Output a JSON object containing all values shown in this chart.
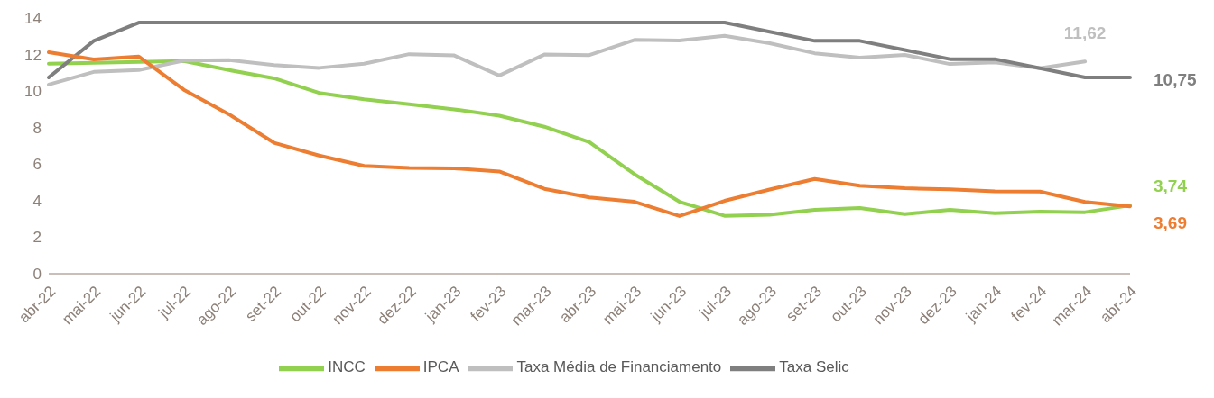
{
  "chart_data": {
    "type": "line",
    "categories": [
      "abr-22",
      "mai-22",
      "jun-22",
      "jul-22",
      "ago-22",
      "set-22",
      "out-22",
      "nov-22",
      "dez-22",
      "jan-23",
      "fev-23",
      "mar-23",
      "abr-23",
      "mai-23",
      "jun-23",
      "jul-23",
      "ago-23",
      "set-23",
      "out-23",
      "nov-23",
      "dez-23",
      "jan-24",
      "fev-24",
      "mar-24",
      "abr-24"
    ],
    "series": [
      {
        "name": "INCC",
        "color": "#92d050",
        "values": [
          11.5,
          11.55,
          11.6,
          11.65,
          11.15,
          10.7,
          9.9,
          9.55,
          9.28,
          9.0,
          8.65,
          8.05,
          7.2,
          5.45,
          3.94,
          3.17,
          3.23,
          3.5,
          3.6,
          3.27,
          3.5,
          3.32,
          3.4,
          3.37,
          3.74
        ],
        "value_labels": [
          null,
          null,
          null,
          null,
          null,
          null,
          null,
          null,
          null,
          null,
          null,
          null,
          null,
          null,
          null,
          null,
          null,
          null,
          null,
          null,
          null,
          null,
          null,
          null,
          "3,74"
        ]
      },
      {
        "name": "Taxa Média de Financiamento",
        "color": "#bfbfbf",
        "values": [
          10.36,
          11.05,
          11.15,
          11.67,
          11.7,
          11.42,
          11.27,
          11.5,
          12.02,
          11.95,
          10.85,
          12.0,
          11.97,
          12.8,
          12.77,
          13.03,
          12.62,
          12.07,
          11.83,
          11.98,
          11.48,
          11.57,
          11.25,
          11.62,
          null
        ],
        "value_labels": [
          null,
          null,
          null,
          null,
          null,
          null,
          null,
          null,
          null,
          null,
          null,
          null,
          null,
          null,
          null,
          null,
          null,
          null,
          null,
          null,
          null,
          null,
          null,
          "11,62",
          null
        ]
      },
      {
        "name": "Taxa Selic",
        "color": "#7f7f7f",
        "values": [
          10.75,
          12.75,
          13.75,
          13.75,
          13.75,
          13.75,
          13.75,
          13.75,
          13.75,
          13.75,
          13.75,
          13.75,
          13.75,
          13.75,
          13.75,
          13.75,
          13.25,
          12.75,
          12.75,
          12.25,
          11.75,
          11.75,
          11.25,
          10.75,
          10.75
        ],
        "value_labels": [
          null,
          null,
          null,
          null,
          null,
          null,
          null,
          null,
          null,
          null,
          null,
          null,
          null,
          null,
          null,
          null,
          null,
          null,
          null,
          null,
          null,
          null,
          null,
          null,
          "10,75"
        ]
      },
      {
        "name": "IPCA",
        "color": "#ed7d31",
        "values": [
          12.13,
          11.73,
          11.89,
          10.07,
          8.73,
          7.17,
          6.47,
          5.9,
          5.79,
          5.77,
          5.6,
          4.65,
          4.18,
          3.94,
          3.16,
          3.99,
          4.61,
          5.19,
          4.82,
          4.68,
          4.62,
          4.51,
          4.5,
          3.93,
          3.69
        ],
        "value_labels": [
          null,
          null,
          null,
          null,
          null,
          null,
          null,
          null,
          null,
          null,
          null,
          null,
          null,
          null,
          null,
          null,
          null,
          null,
          null,
          null,
          null,
          null,
          null,
          null,
          "3,69"
        ]
      }
    ],
    "ylim": [
      0,
      14
    ],
    "yticks": [
      0,
      2,
      4,
      6,
      8,
      10,
      12,
      14
    ],
    "grid": false,
    "legend": "bottom",
    "marker": "none",
    "line_style": "solid"
  }
}
